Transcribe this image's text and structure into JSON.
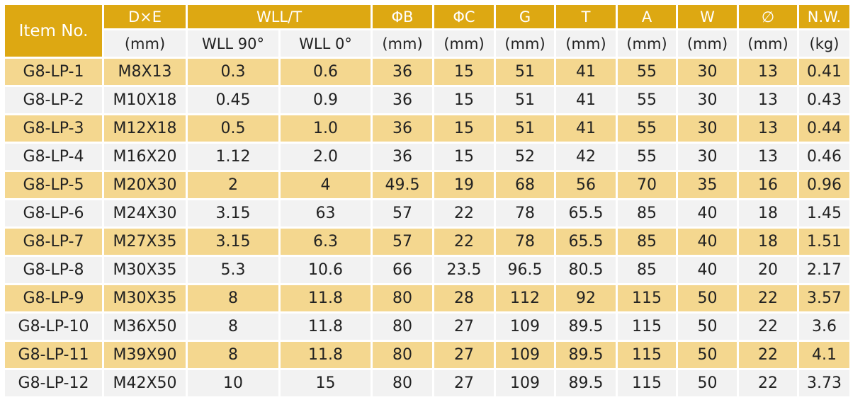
{
  "table": {
    "item_header": "Item No.",
    "header_top": [
      "D×E",
      "WLL/T",
      "ΦB",
      "ΦC",
      "G",
      "T",
      "A",
      "W",
      "∅",
      "N.W."
    ],
    "header_sub": [
      "(mm)",
      "WLL 90°",
      "WLL 0°",
      "(mm)",
      "(mm)",
      "(mm)",
      "(mm)",
      "(mm)",
      "(mm)",
      "(mm)",
      "(kg)"
    ],
    "rows": [
      [
        "G8-LP-1",
        "M8X13",
        "0.3",
        "0.6",
        "36",
        "15",
        "51",
        "41",
        "55",
        "30",
        "13",
        "0.41"
      ],
      [
        "G8-LP-2",
        "M10X18",
        "0.45",
        "0.9",
        "36",
        "15",
        "51",
        "41",
        "55",
        "30",
        "13",
        "0.43"
      ],
      [
        "G8-LP-3",
        "M12X18",
        "0.5",
        "1.0",
        "36",
        "15",
        "51",
        "41",
        "55",
        "30",
        "13",
        "0.44"
      ],
      [
        "G8-LP-4",
        "M16X20",
        "1.12",
        "2.0",
        "36",
        "15",
        "52",
        "42",
        "55",
        "30",
        "13",
        "0.46"
      ],
      [
        "G8-LP-5",
        "M20X30",
        "2",
        "4",
        "49.5",
        "19",
        "68",
        "56",
        "70",
        "35",
        "16",
        "0.96"
      ],
      [
        "G8-LP-6",
        "M24X30",
        "3.15",
        "63",
        "57",
        "22",
        "78",
        "65.5",
        "85",
        "40",
        "18",
        "1.45"
      ],
      [
        "G8-LP-7",
        "M27X35",
        "3.15",
        "6.3",
        "57",
        "22",
        "78",
        "65.5",
        "85",
        "40",
        "18",
        "1.51"
      ],
      [
        "G8-LP-8",
        "M30X35",
        "5.3",
        "10.6",
        "66",
        "23.5",
        "96.5",
        "80.5",
        "85",
        "40",
        "20",
        "2.17"
      ],
      [
        "G8-LP-9",
        "M30X35",
        "8",
        "11.8",
        "80",
        "28",
        "112",
        "92",
        "115",
        "50",
        "22",
        "3.57"
      ],
      [
        "G8-LP-10",
        "M36X50",
        "8",
        "11.8",
        "80",
        "27",
        "109",
        "89.5",
        "115",
        "50",
        "22",
        "3.6"
      ],
      [
        "G8-LP-11",
        "M39X90",
        "8",
        "11.8",
        "80",
        "27",
        "109",
        "89.5",
        "115",
        "50",
        "22",
        "4.1"
      ],
      [
        "G8-LP-12",
        "M42X50",
        "10",
        "15",
        "80",
        "27",
        "109",
        "89.5",
        "115",
        "50",
        "22",
        "3.73"
      ]
    ]
  },
  "colors": {
    "header_gold": "#dda812",
    "row_highlight": "#f4d78f",
    "row_plain": "#f2f2f2"
  }
}
